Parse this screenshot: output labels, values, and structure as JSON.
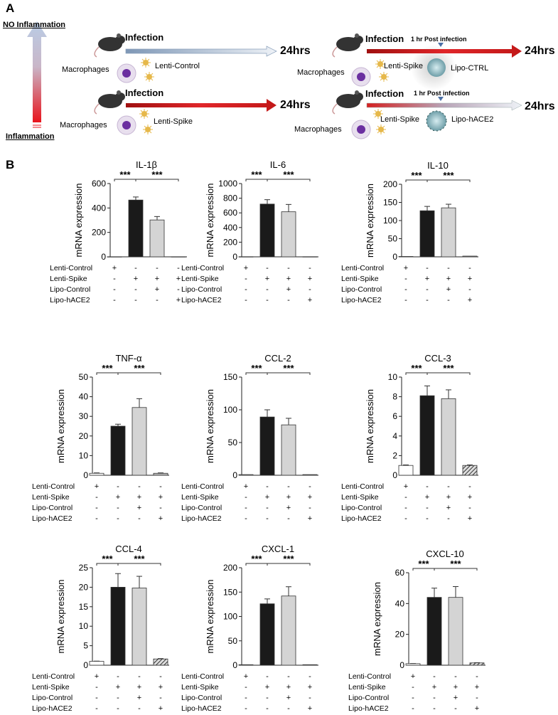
{
  "panel_a": {
    "label": "A",
    "scale_top": "NO Inflammation",
    "scale_bottom": "Inflammation",
    "groups": [
      {
        "infection": "Infection",
        "cells": "Macrophages",
        "virus": "Lenti-Control",
        "time": "24hrs",
        "arrow": "blue"
      },
      {
        "infection": "Infection",
        "cells": "Macrophages",
        "virus": "Lenti-Spike",
        "time": "24hrs",
        "arrow": "red"
      },
      {
        "infection": "Infection",
        "cells": "Macrophages",
        "virus": "Lenti-Spike",
        "time": "24hrs",
        "arrow": "red",
        "post": "1 hr Post infection",
        "lipo": "Lipo-CTRL"
      },
      {
        "infection": "Infection",
        "cells": "Macrophages",
        "virus": "Lenti-Spike",
        "time": "24hrs",
        "arrow": "red-to-blue",
        "post": "1 hr Post infection",
        "lipo": "Lipo-hACE2"
      }
    ]
  },
  "panel_b": {
    "label": "B"
  },
  "colors": {
    "lenti_control": "#ffffff",
    "lenti_spike": "#1a1a1a",
    "lipo_control": "#d4d4d4",
    "lipo_hace2": "hatched",
    "arrow_red": "#d42020",
    "arrow_blue": "#b8cbe0"
  },
  "conditions": {
    "rows": [
      "Lenti-Control",
      "Lenti-Spike",
      "Lipo-Control",
      "Lipo-hACE2"
    ],
    "signs": [
      [
        "+",
        "-",
        "-",
        "-"
      ],
      [
        "-",
        "+",
        "+",
        "+"
      ],
      [
        "-",
        "-",
        "+",
        "-"
      ],
      [
        "-",
        "-",
        "-",
        "+"
      ]
    ]
  },
  "chart_data": [
    {
      "type": "bar",
      "title": "IL-1β",
      "ylabel": "mRNA expression",
      "ylim": [
        0,
        600
      ],
      "yticks": [
        0,
        200,
        400,
        600
      ],
      "values": [
        1,
        465,
        302,
        1
      ],
      "errors": [
        0,
        25,
        28,
        0
      ],
      "significance": [
        "***",
        "***"
      ]
    },
    {
      "type": "bar",
      "title": "IL-6",
      "ylabel": "mRNA expression",
      "ylim": [
        0,
        1000
      ],
      "yticks": [
        0,
        200,
        400,
        600,
        800,
        1000
      ],
      "values": [
        2,
        720,
        615,
        2
      ],
      "errors": [
        0,
        60,
        100,
        0
      ],
      "significance": [
        "***",
        "***"
      ]
    },
    {
      "type": "bar",
      "title": "IL-10",
      "ylabel": "mRNA expression",
      "ylim": [
        0,
        200
      ],
      "yticks": [
        0,
        50,
        100,
        150,
        200
      ],
      "values": [
        1,
        127,
        135,
        2
      ],
      "errors": [
        0,
        12,
        10,
        0
      ],
      "significance": [
        "***",
        "***"
      ]
    },
    {
      "type": "bar",
      "title": "TNF-α",
      "ylabel": "mRNA expression",
      "ylim": [
        0,
        50
      ],
      "yticks": [
        0,
        10,
        20,
        30,
        40,
        50
      ],
      "values": [
        1,
        25,
        34.5,
        1
      ],
      "errors": [
        0.2,
        1,
        4.5,
        0.2
      ],
      "significance": [
        "***",
        "***"
      ]
    },
    {
      "type": "bar",
      "title": "CCL-2",
      "ylabel": "mRNA expression",
      "ylim": [
        0,
        150
      ],
      "yticks": [
        0,
        50,
        100,
        150
      ],
      "values": [
        1,
        89,
        77,
        1
      ],
      "errors": [
        0,
        11,
        10,
        0
      ],
      "significance": [
        "***",
        "***"
      ]
    },
    {
      "type": "bar",
      "title": "CCL-3",
      "ylabel": "mRNA expression",
      "ylim": [
        0,
        10
      ],
      "yticks": [
        0,
        2,
        4,
        6,
        8,
        10
      ],
      "values": [
        1,
        8.1,
        7.8,
        1
      ],
      "errors": [
        0.05,
        1,
        0.9,
        0.05
      ],
      "significance": [
        "***",
        "***"
      ]
    },
    {
      "type": "bar",
      "title": "CCL-4",
      "ylabel": "mRNA expression",
      "ylim": [
        0,
        25
      ],
      "yticks": [
        0,
        5,
        10,
        15,
        20,
        25
      ],
      "values": [
        1,
        20,
        19.8,
        1.6
      ],
      "errors": [
        0.05,
        3.5,
        3,
        0.1
      ],
      "significance": [
        "***",
        "***"
      ]
    },
    {
      "type": "bar",
      "title": "CXCL-1",
      "ylabel": "mRNA expression",
      "ylim": [
        0,
        200
      ],
      "yticks": [
        0,
        50,
        100,
        150,
        200
      ],
      "values": [
        1,
        126,
        142,
        1
      ],
      "errors": [
        0,
        10,
        19,
        0
      ],
      "significance": [
        "***",
        "***"
      ]
    },
    {
      "type": "bar",
      "title": "CXCL-10",
      "ylabel": "mRNA expression",
      "ylim": [
        0,
        60
      ],
      "yticks": [
        0,
        20,
        40,
        60
      ],
      "values": [
        1,
        44,
        44,
        1.5
      ],
      "errors": [
        0.1,
        6,
        7,
        0.1
      ],
      "significance": [
        "***",
        "***"
      ]
    }
  ]
}
